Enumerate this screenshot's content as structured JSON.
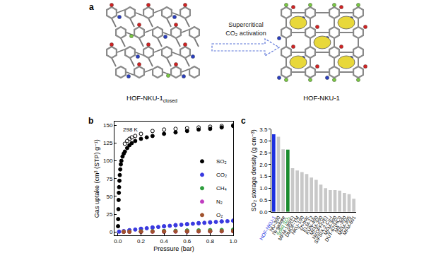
{
  "panel_a": {
    "label": "a",
    "left_label": {
      "text": "HOF-NKU-1",
      "subscript": "closed"
    },
    "arrow_text": [
      "Supercritical",
      "CO₂ activation"
    ],
    "right_label": "HOF-NKU-1"
  },
  "chart_data": [
    {
      "type": "scatter",
      "panel": "b",
      "annotations": [
        "298 K"
      ],
      "x_label": "Pressure (bar)",
      "y_label": "Gas uptake (cm³ (STP) g⁻¹)",
      "xlim": [
        -0.03,
        1.0
      ],
      "xticks": [
        {
          "value": 0,
          "label": "0.0"
        },
        {
          "value": 0.2,
          "label": "0.2"
        },
        {
          "value": 0.4,
          "label": "0.4"
        },
        {
          "value": 0.6,
          "label": "0.6"
        },
        {
          "value": 0.8,
          "label": "0.8"
        },
        {
          "value": 1.0,
          "label": "1.0"
        }
      ],
      "ylim": [
        -5,
        155
      ],
      "yticks": [
        0,
        25,
        50,
        75,
        100,
        125,
        150
      ],
      "grid": false,
      "legend": "right",
      "series": [
        {
          "name": "SO₂",
          "color": "#000000",
          "marker": "filled",
          "x": [
            0.001,
            0.002,
            0.004,
            0.006,
            0.008,
            0.01,
            0.013,
            0.016,
            0.02,
            0.025,
            0.03,
            0.04,
            0.05,
            0.06,
            0.08,
            0.1,
            0.12,
            0.15,
            0.2,
            0.25,
            0.3,
            0.4,
            0.5,
            0.6,
            0.7,
            0.8,
            0.9,
            1.0
          ],
          "values": [
            8,
            18,
            32,
            45,
            55,
            63,
            72,
            80,
            88,
            95,
            100,
            106,
            110,
            113,
            118,
            122,
            125,
            128,
            131,
            133,
            135,
            138,
            140,
            142,
            144,
            145,
            147,
            149
          ]
        },
        {
          "name": "SO₂",
          "color": "#000000",
          "marker": "open",
          "x": [
            1.0,
            0.9,
            0.8,
            0.7,
            0.6,
            0.5,
            0.4,
            0.3,
            0.2,
            0.15,
            0.12,
            0.1,
            0.08,
            0.06
          ],
          "values": [
            150,
            149,
            148,
            147,
            146,
            145,
            144,
            142,
            138,
            135,
            133,
            131,
            128,
            124
          ]
        },
        {
          "name": "CO₂",
          "color": "#3a3ae0",
          "marker": "filled",
          "x": [
            0.01,
            0.05,
            0.1,
            0.15,
            0.2,
            0.25,
            0.3,
            0.35,
            0.4,
            0.45,
            0.5,
            0.55,
            0.6,
            0.65,
            0.7,
            0.75,
            0.8,
            0.85,
            0.9,
            0.95,
            1.0
          ],
          "values": [
            0.3,
            1.2,
            2.3,
            3.3,
            4.3,
            5.2,
            6.1,
            7.0,
            7.8,
            8.6,
            9.4,
            10.1,
            10.8,
            11.5,
            12.2,
            12.8,
            13.4,
            14.0,
            14.6,
            15.1,
            15.7
          ]
        },
        {
          "name": "CO₂",
          "color": "#3a3ae0",
          "marker": "open",
          "x": [
            1.0,
            0.9,
            0.8,
            0.7,
            0.6,
            0.5,
            0.4,
            0.3,
            0.2,
            0.1
          ],
          "values": [
            15.8,
            14.8,
            13.6,
            12.4,
            11.0,
            9.6,
            8.0,
            6.3,
            4.5,
            2.4
          ]
        },
        {
          "name": "CH₄",
          "color": "#2e9e3e",
          "marker": "filled",
          "x": [
            0.05,
            0.1,
            0.2,
            0.3,
            0.4,
            0.5,
            0.6,
            0.7,
            0.8,
            0.9,
            1.0
          ],
          "values": [
            0.2,
            0.4,
            0.7,
            1.0,
            1.3,
            1.6,
            1.9,
            2.2,
            2.4,
            2.7,
            3.0
          ]
        },
        {
          "name": "CH₄",
          "color": "#2e9e3e",
          "marker": "open",
          "x": [
            1.0,
            0.8,
            0.6,
            0.4,
            0.2
          ],
          "values": [
            3.0,
            2.5,
            1.9,
            1.3,
            0.7
          ]
        },
        {
          "name": "N₂",
          "color": "#c03cc0",
          "marker": "filled",
          "x": [
            0.05,
            0.1,
            0.2,
            0.3,
            0.4,
            0.5,
            0.6,
            0.7,
            0.8,
            0.9,
            1.0
          ],
          "values": [
            0.1,
            0.1,
            0.2,
            0.3,
            0.4,
            0.5,
            0.5,
            0.6,
            0.7,
            0.8,
            0.9
          ]
        },
        {
          "name": "N₂",
          "color": "#c03cc0",
          "marker": "open",
          "x": [
            1.0,
            0.8,
            0.6,
            0.4,
            0.2
          ],
          "values": [
            0.9,
            0.7,
            0.5,
            0.4,
            0.2
          ]
        },
        {
          "name": "O₂",
          "color": "#a0522d",
          "marker": "filled",
          "x": [
            0.05,
            0.1,
            0.2,
            0.3,
            0.4,
            0.5,
            0.6,
            0.7,
            0.8,
            0.9,
            1.0
          ],
          "values": [
            0.1,
            0.2,
            0.3,
            0.4,
            0.5,
            0.6,
            0.7,
            0.8,
            0.9,
            1.0,
            1.1
          ]
        },
        {
          "name": "O₂",
          "color": "#a0522d",
          "marker": "open",
          "x": [
            1.0,
            0.8,
            0.6,
            0.4,
            0.2
          ],
          "values": [
            1.1,
            0.9,
            0.7,
            0.5,
            0.3
          ]
        }
      ]
    },
    {
      "type": "bar",
      "panel": "c",
      "y_label": "SO₂ storage density (g cm⁻³)",
      "categories": [
        "HOF-NKU-1",
        "NU-300",
        "Ni-gallate",
        "Solid SO₂",
        "MFM-190(F)",
        "DMOF-TM",
        "NKU-100",
        "Zn-bdc",
        "ELM-12",
        "KUN-400",
        "MFM-200",
        "Ni(OFFIVE)",
        "SIFSIX-2-Cu-i",
        "MFM-300",
        "DUT-67(HCl)",
        "MIL-300",
        "MFM-305",
        "MFM-601"
      ],
      "values": [
        3.28,
        3.18,
        2.65,
        2.63,
        1.85,
        1.75,
        1.68,
        1.6,
        1.45,
        1.35,
        1.15,
        1.0,
        0.92,
        0.92,
        0.9,
        0.8,
        0.75,
        0.55
      ],
      "colors": [
        "#1c2fe0",
        "#c8c8c8",
        "#c8c8c8",
        "#1a8c2e",
        "#c8c8c8",
        "#c8c8c8",
        "#c8c8c8",
        "#c8c8c8",
        "#c8c8c8",
        "#c8c8c8",
        "#c8c8c8",
        "#c8c8c8",
        "#c8c8c8",
        "#c8c8c8",
        "#c8c8c8",
        "#c8c8c8",
        "#c8c8c8",
        "#c8c8c8"
      ],
      "ylim": [
        0,
        3.5
      ],
      "yticks": [
        {
          "value": 0,
          "label": "0.0"
        },
        {
          "value": 0.5,
          "label": "0.5"
        },
        {
          "value": 1.0,
          "label": "1.0"
        },
        {
          "value": 1.5,
          "label": "1.5"
        },
        {
          "value": 2.0,
          "label": "2.0"
        },
        {
          "value": 2.5,
          "label": "2.5"
        },
        {
          "value": 3.0,
          "label": "3.0"
        },
        {
          "value": 3.5,
          "label": "3.5"
        }
      ],
      "grid": false
    }
  ]
}
